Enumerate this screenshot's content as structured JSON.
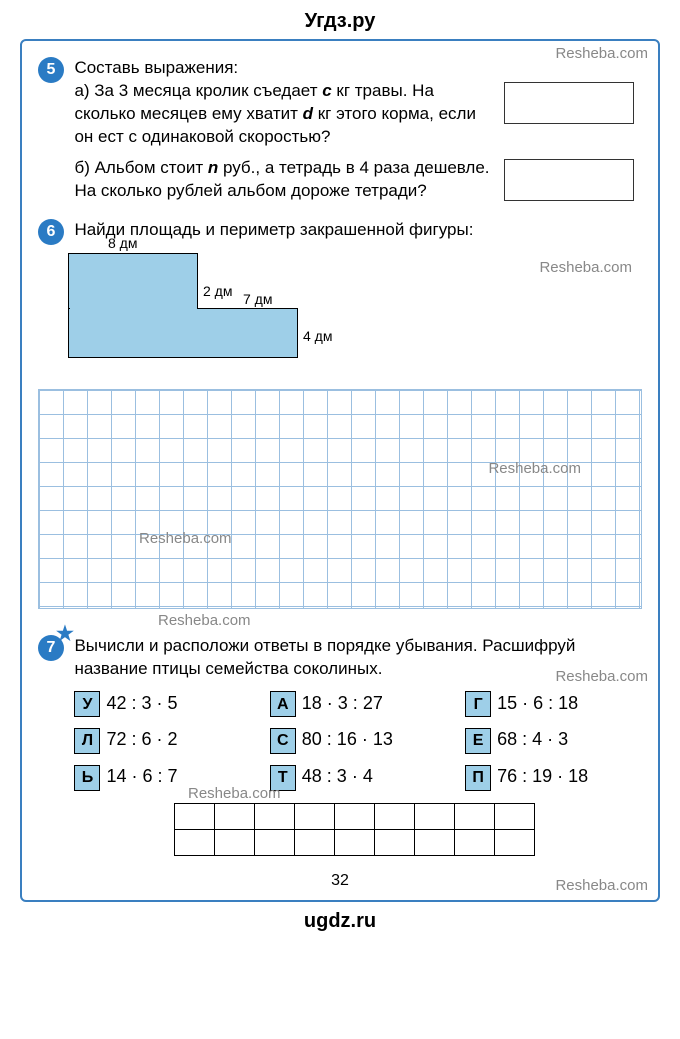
{
  "site_header": "Угдз.ру",
  "site_footer": "ugdz.ru",
  "watermark_text": "Resheba.com",
  "page_number": "32",
  "task5": {
    "number": "5",
    "intro": "Составь выражения:",
    "part_a": "а) За 3 месяца кролик съедает c кг травы. На сколько месяцев ему хватит d кг этого корма, если он ест с одинаковой скоростью?",
    "part_b": "б) Альбом стоит n руб., а тетрадь в 4 раза дешевле. На сколько рублей альбом дороже тетради?"
  },
  "task6": {
    "number": "6",
    "text": "Найди площадь и периметр закрашенной фигуры:",
    "dims": {
      "top": "8 дм",
      "step_h": "2 дм",
      "step_w": "7 дм",
      "right": "4 дм"
    },
    "shape_fill": "#9ecfe8",
    "grid_color": "#9bbfe0"
  },
  "task7": {
    "number": "7",
    "has_star": true,
    "text": "Вычисли и расположи ответы в порядке убывания. Расшифруй название птицы семейства соколиных.",
    "items": [
      {
        "letter": "У",
        "expr": "42 : 3 · 5"
      },
      {
        "letter": "А",
        "expr": "18 · 3 : 27"
      },
      {
        "letter": "Г",
        "expr": "15 · 6 : 18"
      },
      {
        "letter": "Л",
        "expr": "72 : 6 · 2"
      },
      {
        "letter": "С",
        "expr": "80 : 16 · 13"
      },
      {
        "letter": "Е",
        "expr": "68 : 4 · 3"
      },
      {
        "letter": "Ь",
        "expr": "14 · 6 : 7"
      },
      {
        "letter": "Т",
        "expr": "48 : 3 · 4"
      },
      {
        "letter": "П",
        "expr": "76 : 19 · 18"
      }
    ],
    "answer_cells": 9
  },
  "colors": {
    "circle_bg": "#2a7bc4",
    "frame_border": "#3a7fc0",
    "letter_box_bg": "#9ecfe8"
  }
}
